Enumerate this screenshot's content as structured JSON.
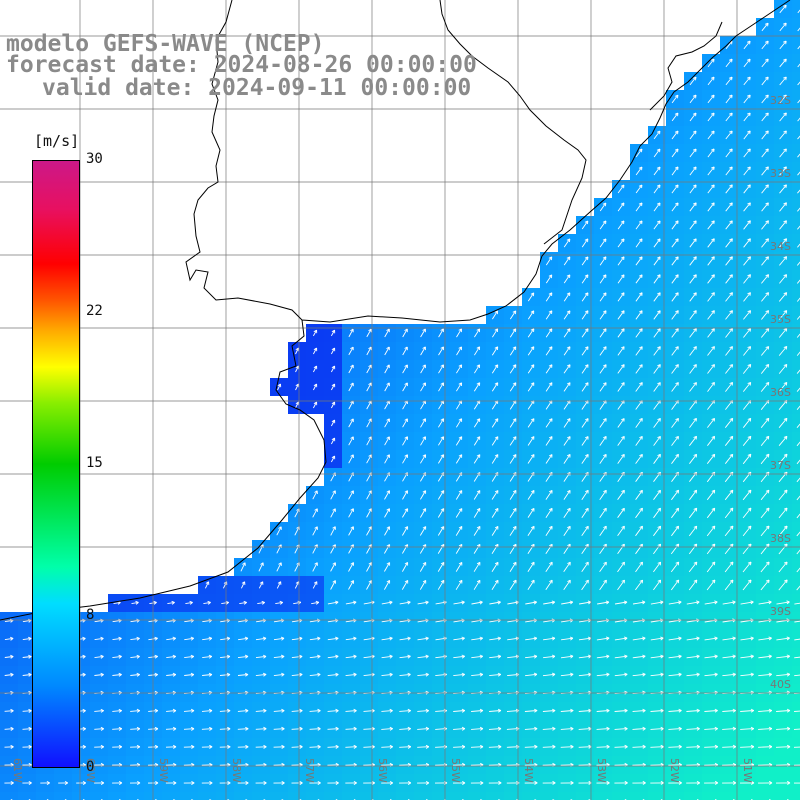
{
  "header": {
    "model": "modelo GEFS-WAVE (NCEP)",
    "forecast": "forecast date: 2024-08-26 00:00:00",
    "valid": "valid date: 2024-09-11 00:00:00"
  },
  "colorbar": {
    "units": "[m/s]",
    "labels": [
      "30",
      "22",
      "15",
      "8",
      "0"
    ],
    "min": 0,
    "max": 30
  },
  "lat_labels": [
    "32S",
    "33S",
    "34S",
    "35S",
    "36S",
    "37S",
    "38S",
    "39S",
    "40S"
  ],
  "lon_labels": [
    "61W",
    "60W",
    "59W",
    "58W",
    "57W",
    "56W",
    "55W",
    "54W",
    "53W",
    "52W",
    "51W"
  ],
  "colors": {
    "calm": "#0a28f0",
    "moderate": "#0aa0ff",
    "strong": "#10f0c8",
    "land": "#ffffff",
    "grid": "#777777",
    "coast": "#000000",
    "title": "#8a8a8a"
  },
  "icons": {
    "wind_vector": "arrow-icon"
  }
}
